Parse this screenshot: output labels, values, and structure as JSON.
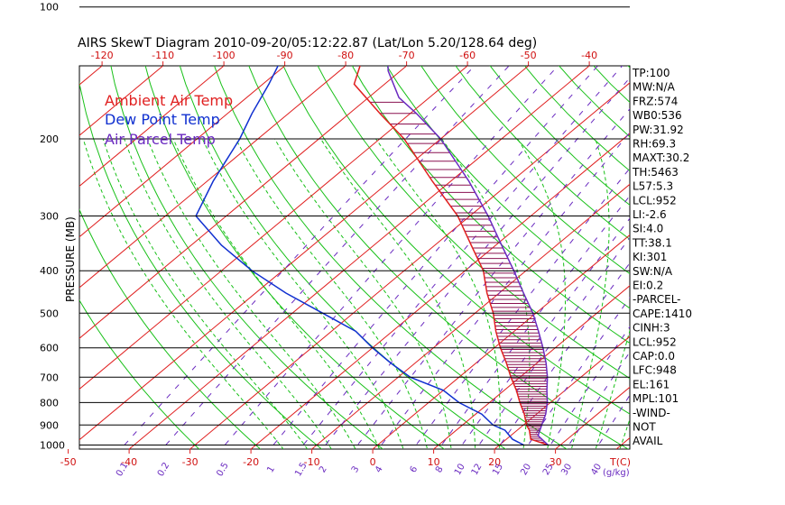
{
  "title": "AIRS SkewT Diagram 2010-09-20/05:12:22.87 (Lat/Lon 5.20/128.64 deg)",
  "y_axis_label": "PRESSURE (MB)",
  "pressure_levels": [
    "100",
    "200",
    "300",
    "400",
    "500",
    "600",
    "700",
    "800",
    "900",
    "1000"
  ],
  "pressure_values": [
    100,
    200,
    300,
    400,
    500,
    600,
    700,
    800,
    900,
    1000
  ],
  "top_temp_ticks": [
    "-120",
    "-110",
    "-100",
    "-90",
    "-80",
    "-70",
    "-60",
    "-50",
    "-40"
  ],
  "bottom_temp_ticks": [
    "-50",
    "-40",
    "-30",
    "-20",
    "-10",
    "0",
    "10",
    "20",
    "30"
  ],
  "bottom_temp_unit": "T(C)",
  "mixing_ratio_labels": [
    "0.1",
    "0.2",
    "0.5",
    "1",
    "1.5",
    "2",
    "3",
    "4",
    "6",
    "8",
    "10",
    "12",
    "15",
    "20",
    "25",
    "30",
    "40"
  ],
  "mixing_ratio_unit": "(g/kg)",
  "legend": [
    {
      "label": "Ambient Air Temp",
      "color": "#e02020"
    },
    {
      "label": "Dew Point Temp",
      "color": "#1030d0"
    },
    {
      "label": "Air Parcel Temp",
      "color": "#6a2ac0"
    }
  ],
  "indices": [
    "TP:100",
    "MW:N/A",
    "FRZ:574",
    "WB0:536",
    "PW:31.92",
    "RH:69.3",
    "MAXT:30.2",
    "TH:5463",
    "L57:5.3",
    "LCL:952",
    "LI:-2.6",
    "SI:4.0",
    "TT:38.1",
    "KI:301",
    "SW:N/A",
    "EI:0.2",
    "-PARCEL-",
    "CAPE:1410",
    "CINH:3",
    "LCL:952",
    "CAP:0.0",
    "LFC:948",
    "EL:161",
    "MPL:101",
    "-WIND-",
    "NOT",
    "AVAIL"
  ],
  "chart_data": {
    "type": "line",
    "title": "AIRS SkewT Diagram 2010-09-20/05:12:22.87 (Lat/Lon 5.20/128.64 deg)",
    "xlabel": "T(C)",
    "ylabel": "PRESSURE (MB)",
    "ylim": [
      1050,
      100
    ],
    "series": [
      {
        "name": "Ambient Air Temp",
        "color": "#e02020",
        "points": [
          [
            1000,
            28
          ],
          [
            970,
            24
          ],
          [
            925,
            22
          ],
          [
            900,
            20.5
          ],
          [
            850,
            18
          ],
          [
            800,
            15
          ],
          [
            750,
            12
          ],
          [
            700,
            8.5
          ],
          [
            650,
            5
          ],
          [
            600,
            1
          ],
          [
            550,
            -3
          ],
          [
            500,
            -7
          ],
          [
            450,
            -12
          ],
          [
            400,
            -17
          ],
          [
            350,
            -24
          ],
          [
            300,
            -32
          ],
          [
            250,
            -43
          ],
          [
            200,
            -56
          ],
          [
            175,
            -65
          ],
          [
            150,
            -75
          ],
          [
            125,
            -80
          ],
          [
            100,
            -80
          ]
        ]
      },
      {
        "name": "Dew Point Temp",
        "color": "#1030d0",
        "points": [
          [
            1000,
            24
          ],
          [
            970,
            21
          ],
          [
            925,
            18
          ],
          [
            900,
            15
          ],
          [
            850,
            11
          ],
          [
            800,
            5
          ],
          [
            750,
            0
          ],
          [
            700,
            -8
          ],
          [
            650,
            -14
          ],
          [
            600,
            -20
          ],
          [
            550,
            -26
          ],
          [
            500,
            -35
          ],
          [
            450,
            -45
          ],
          [
            400,
            -55
          ],
          [
            350,
            -65
          ],
          [
            300,
            -75
          ],
          [
            250,
            -79
          ],
          [
            200,
            -83
          ],
          [
            175,
            -86
          ],
          [
            150,
            -89
          ],
          [
            125,
            -93
          ],
          [
            100,
            -96
          ]
        ]
      },
      {
        "name": "Air Parcel Temp",
        "color": "#6a2ac0",
        "points": [
          [
            1000,
            28
          ],
          [
            952,
            24.5
          ],
          [
            900,
            23
          ],
          [
            850,
            21.5
          ],
          [
            800,
            19.5
          ],
          [
            750,
            17
          ],
          [
            700,
            14.5
          ],
          [
            650,
            11.5
          ],
          [
            600,
            8
          ],
          [
            550,
            4
          ],
          [
            500,
            -0.5
          ],
          [
            450,
            -6
          ],
          [
            400,
            -12
          ],
          [
            350,
            -19
          ],
          [
            300,
            -27
          ],
          [
            250,
            -37
          ],
          [
            200,
            -50
          ],
          [
            175,
            -59
          ],
          [
            161,
            -65
          ],
          [
            140,
            -72
          ],
          [
            120,
            -78
          ],
          [
            100,
            -84
          ]
        ]
      }
    ]
  }
}
